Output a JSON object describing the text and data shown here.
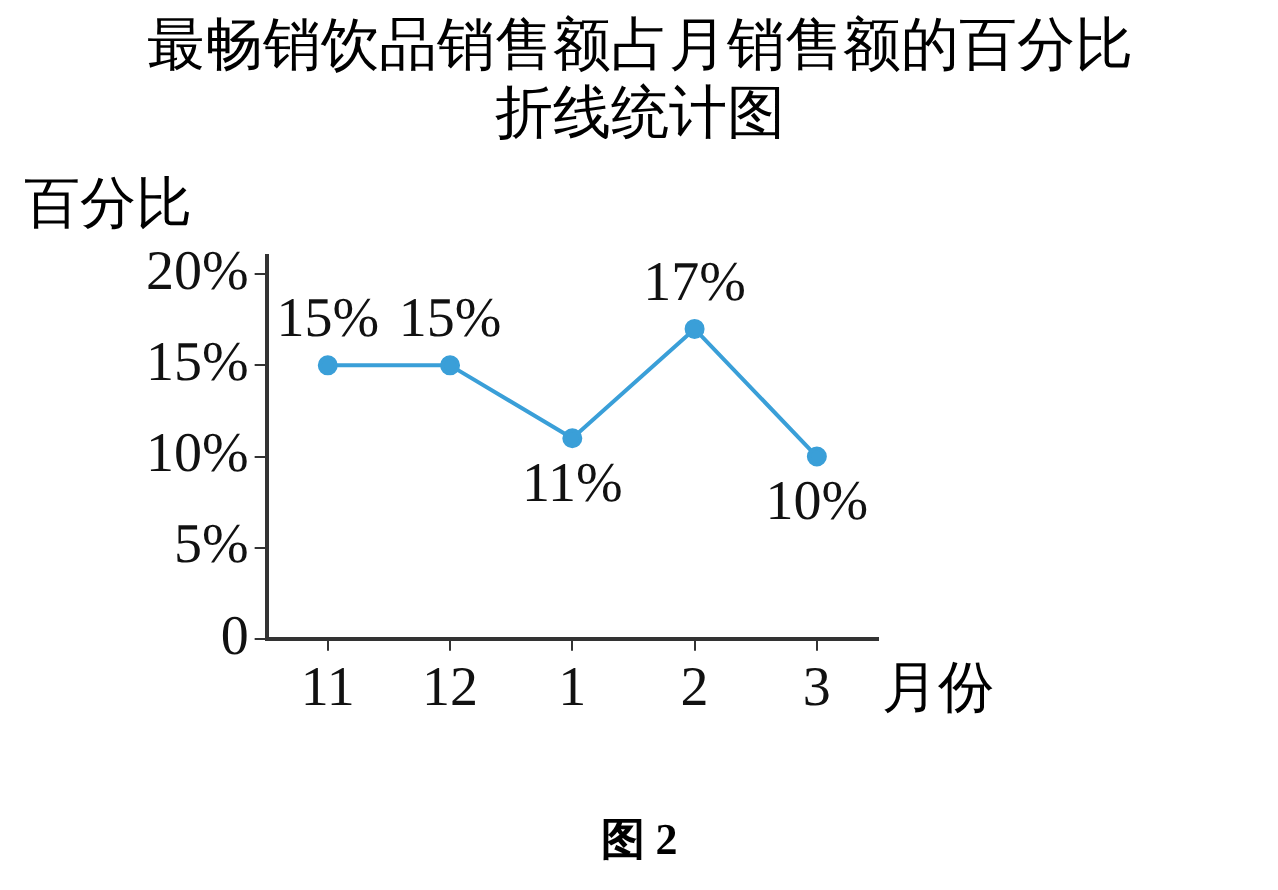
{
  "chart_data": {
    "type": "line",
    "title": "最畅销饮品销售额占月销售额的百分比折线统计图",
    "ylabel": "百分比",
    "xlabel": "月份",
    "annotations": [
      "图 2"
    ],
    "categories": [
      "11",
      "12",
      "1",
      "2",
      "3"
    ],
    "series": [
      {
        "color": "#3a9fd8",
        "values": [
          15,
          15,
          11,
          17,
          10
        ]
      }
    ],
    "ylim": [
      0,
      21
    ],
    "yticks": [
      0,
      {
        "value": 5,
        "label": "5%"
      },
      {
        "value": 10,
        "label": "10%"
      },
      {
        "value": 15,
        "label": "15%"
      },
      {
        "value": 20,
        "label": "20%"
      }
    ],
    "value_labels": [
      [
        "15%",
        "15%",
        "11%",
        "17%",
        "10%"
      ]
    ],
    "grid": false,
    "legend": false,
    "marker": "circle",
    "line_style": "solid"
  }
}
